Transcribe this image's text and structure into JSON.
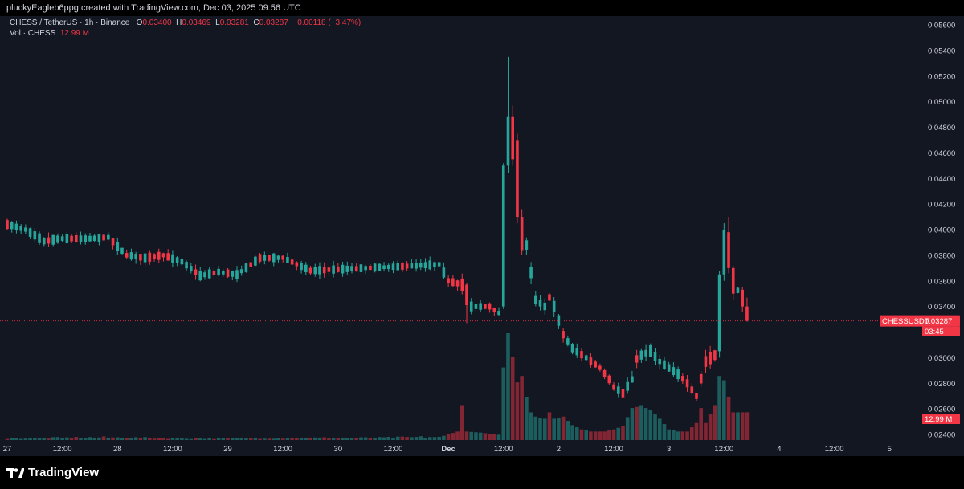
{
  "header": {
    "text": "pluckyEagleb6ppg created with TradingView.com, Dec 03, 2025 09:56 UTC"
  },
  "legend": {
    "symbol": "CHESS / TetherUS · 1h · Binance",
    "o_label": "O",
    "o_value": "0.03400",
    "h_label": "H",
    "h_value": "0.03469",
    "l_label": "L",
    "l_value": "0.03281",
    "c_label": "C",
    "c_value": "0.03287",
    "change": "−0.00118 (−3.47%)",
    "vol_label": "Vol · CHESS",
    "vol_value": "12.99 M"
  },
  "price_tag": {
    "symbol": "CHESSUSDT",
    "price": "0.03287",
    "countdown": "03:45"
  },
  "volume_tag": "12.99 M",
  "branding": {
    "name": "TradingView"
  },
  "colors": {
    "up": "#26a69a",
    "down": "#f23645",
    "background": "#131722",
    "text": "#d1d4dc"
  },
  "chart_data": {
    "type": "candlestick",
    "title": "CHESS / TetherUS · 1h · Binance",
    "ylim": [
      0.0235,
      0.057
    ],
    "y_ticks": [
      "0.05600",
      "0.05400",
      "0.05200",
      "0.05000",
      "0.04800",
      "0.04600",
      "0.04400",
      "0.04200",
      "0.04000",
      "0.03800",
      "0.03600",
      "0.03400",
      "0.03200",
      "0.03000",
      "0.02800",
      "0.02600",
      "0.02400"
    ],
    "x_ticks": [
      {
        "label": "27",
        "bar": 0
      },
      {
        "label": "12:00",
        "bar": 12
      },
      {
        "label": "28",
        "bar": 24
      },
      {
        "label": "12:00",
        "bar": 36
      },
      {
        "label": "29",
        "bar": 48
      },
      {
        "label": "12:00",
        "bar": 60
      },
      {
        "label": "30",
        "bar": 72
      },
      {
        "label": "12:00",
        "bar": 84
      },
      {
        "label": "Dec",
        "bar": 96
      },
      {
        "label": "12:00",
        "bar": 108
      },
      {
        "label": "2",
        "bar": 120
      },
      {
        "label": "12:00",
        "bar": 132
      },
      {
        "label": "3",
        "bar": 144
      },
      {
        "label": "12:00",
        "bar": 156
      },
      {
        "label": "4",
        "bar": 168
      },
      {
        "label": "12:00",
        "bar": 180
      },
      {
        "label": "5",
        "bar": 192
      }
    ],
    "last_price": 0.03287,
    "anchors": [
      [
        0,
        0.0404,
        0.0012
      ],
      [
        4,
        0.04,
        0.0012
      ],
      [
        8,
        0.0391,
        0.0014
      ],
      [
        12,
        0.0393,
        0.0013
      ],
      [
        18,
        0.0393,
        0.0011
      ],
      [
        22,
        0.0394,
        0.0011
      ],
      [
        26,
        0.038,
        0.0014
      ],
      [
        30,
        0.0378,
        0.0012
      ],
      [
        34,
        0.038,
        0.0012
      ],
      [
        38,
        0.0375,
        0.0011
      ],
      [
        42,
        0.0364,
        0.0013
      ],
      [
        46,
        0.0367,
        0.0011
      ],
      [
        50,
        0.0365,
        0.0012
      ],
      [
        55,
        0.0378,
        0.0012
      ],
      [
        60,
        0.0378,
        0.0011
      ],
      [
        66,
        0.0368,
        0.0011
      ],
      [
        72,
        0.0369,
        0.0013
      ],
      [
        78,
        0.037,
        0.0011
      ],
      [
        84,
        0.0371,
        0.0011
      ],
      [
        90,
        0.0372,
        0.0012
      ],
      [
        94,
        0.0373,
        0.0012
      ],
      [
        96,
        0.036,
        0.0016
      ],
      [
        99,
        0.0357,
        0.0018
      ],
      [
        100,
        0.0333,
        0.0015
      ],
      [
        101,
        0.034,
        0.0013
      ],
      [
        105,
        0.034,
        0.0013
      ],
      [
        107,
        0.0335,
        0.0012
      ],
      [
        108,
        0.0437,
        0.0015
      ],
      [
        109,
        0.0487,
        0.0064
      ],
      [
        110,
        0.0488,
        0.0063
      ],
      [
        111,
        0.0461,
        0.002
      ],
      [
        112,
        0.0395,
        0.0021
      ],
      [
        113,
        0.0388,
        0.0015
      ],
      [
        115,
        0.0345,
        0.0018
      ],
      [
        117,
        0.034,
        0.0014
      ],
      [
        118,
        0.0347,
        0.0015
      ],
      [
        119,
        0.034,
        0.0016
      ],
      [
        121,
        0.0318,
        0.0015
      ],
      [
        123,
        0.0307,
        0.0013
      ],
      [
        126,
        0.03,
        0.0012
      ],
      [
        129,
        0.0292,
        0.0012
      ],
      [
        131,
        0.0283,
        0.0011
      ],
      [
        132,
        0.0277,
        0.0013
      ],
      [
        134,
        0.0272,
        0.0013
      ],
      [
        136,
        0.0283,
        0.0014
      ],
      [
        137,
        0.0299,
        0.0016
      ],
      [
        138,
        0.0302,
        0.0016
      ],
      [
        140,
        0.0305,
        0.0016
      ],
      [
        142,
        0.0297,
        0.0015
      ],
      [
        144,
        0.0292,
        0.0013
      ],
      [
        146,
        0.0287,
        0.0013
      ],
      [
        148,
        0.028,
        0.0014
      ],
      [
        150,
        0.027,
        0.0013
      ],
      [
        152,
        0.0297,
        0.0018
      ],
      [
        154,
        0.0302,
        0.0016
      ],
      [
        155,
        0.0337,
        0.0018
      ],
      [
        156,
        0.0396,
        0.0016
      ],
      [
        157,
        0.0398,
        0.0016
      ],
      [
        158,
        0.036,
        0.0015
      ],
      [
        160,
        0.0345,
        0.0014
      ],
      [
        161,
        0.034,
        0.0014
      ]
    ],
    "volume_scale_max": 100,
    "volume_peaks": [
      [
        0,
        1.5
      ],
      [
        20,
        2.5
      ],
      [
        40,
        1.5
      ],
      [
        60,
        2
      ],
      [
        80,
        2
      ],
      [
        94,
        3
      ],
      [
        95,
        4
      ],
      [
        98,
        8
      ],
      [
        99,
        32
      ],
      [
        100,
        8
      ],
      [
        103,
        7
      ],
      [
        107,
        5
      ],
      [
        108,
        68
      ],
      [
        109,
        100
      ],
      [
        110,
        78
      ],
      [
        111,
        54
      ],
      [
        112,
        60
      ],
      [
        113,
        40
      ],
      [
        114,
        26
      ],
      [
        115,
        22
      ],
      [
        117,
        20
      ],
      [
        118,
        26
      ],
      [
        119,
        20
      ],
      [
        121,
        22
      ],
      [
        123,
        14
      ],
      [
        125,
        10
      ],
      [
        127,
        8
      ],
      [
        130,
        8
      ],
      [
        132,
        10
      ],
      [
        134,
        13
      ],
      [
        136,
        30
      ],
      [
        138,
        32
      ],
      [
        140,
        28
      ],
      [
        142,
        20
      ],
      [
        144,
        10
      ],
      [
        146,
        8
      ],
      [
        148,
        8
      ],
      [
        150,
        16
      ],
      [
        151,
        30
      ],
      [
        152,
        16
      ],
      [
        154,
        32
      ],
      [
        155,
        60
      ],
      [
        156,
        56
      ],
      [
        157,
        40
      ],
      [
        158,
        26
      ]
    ]
  }
}
